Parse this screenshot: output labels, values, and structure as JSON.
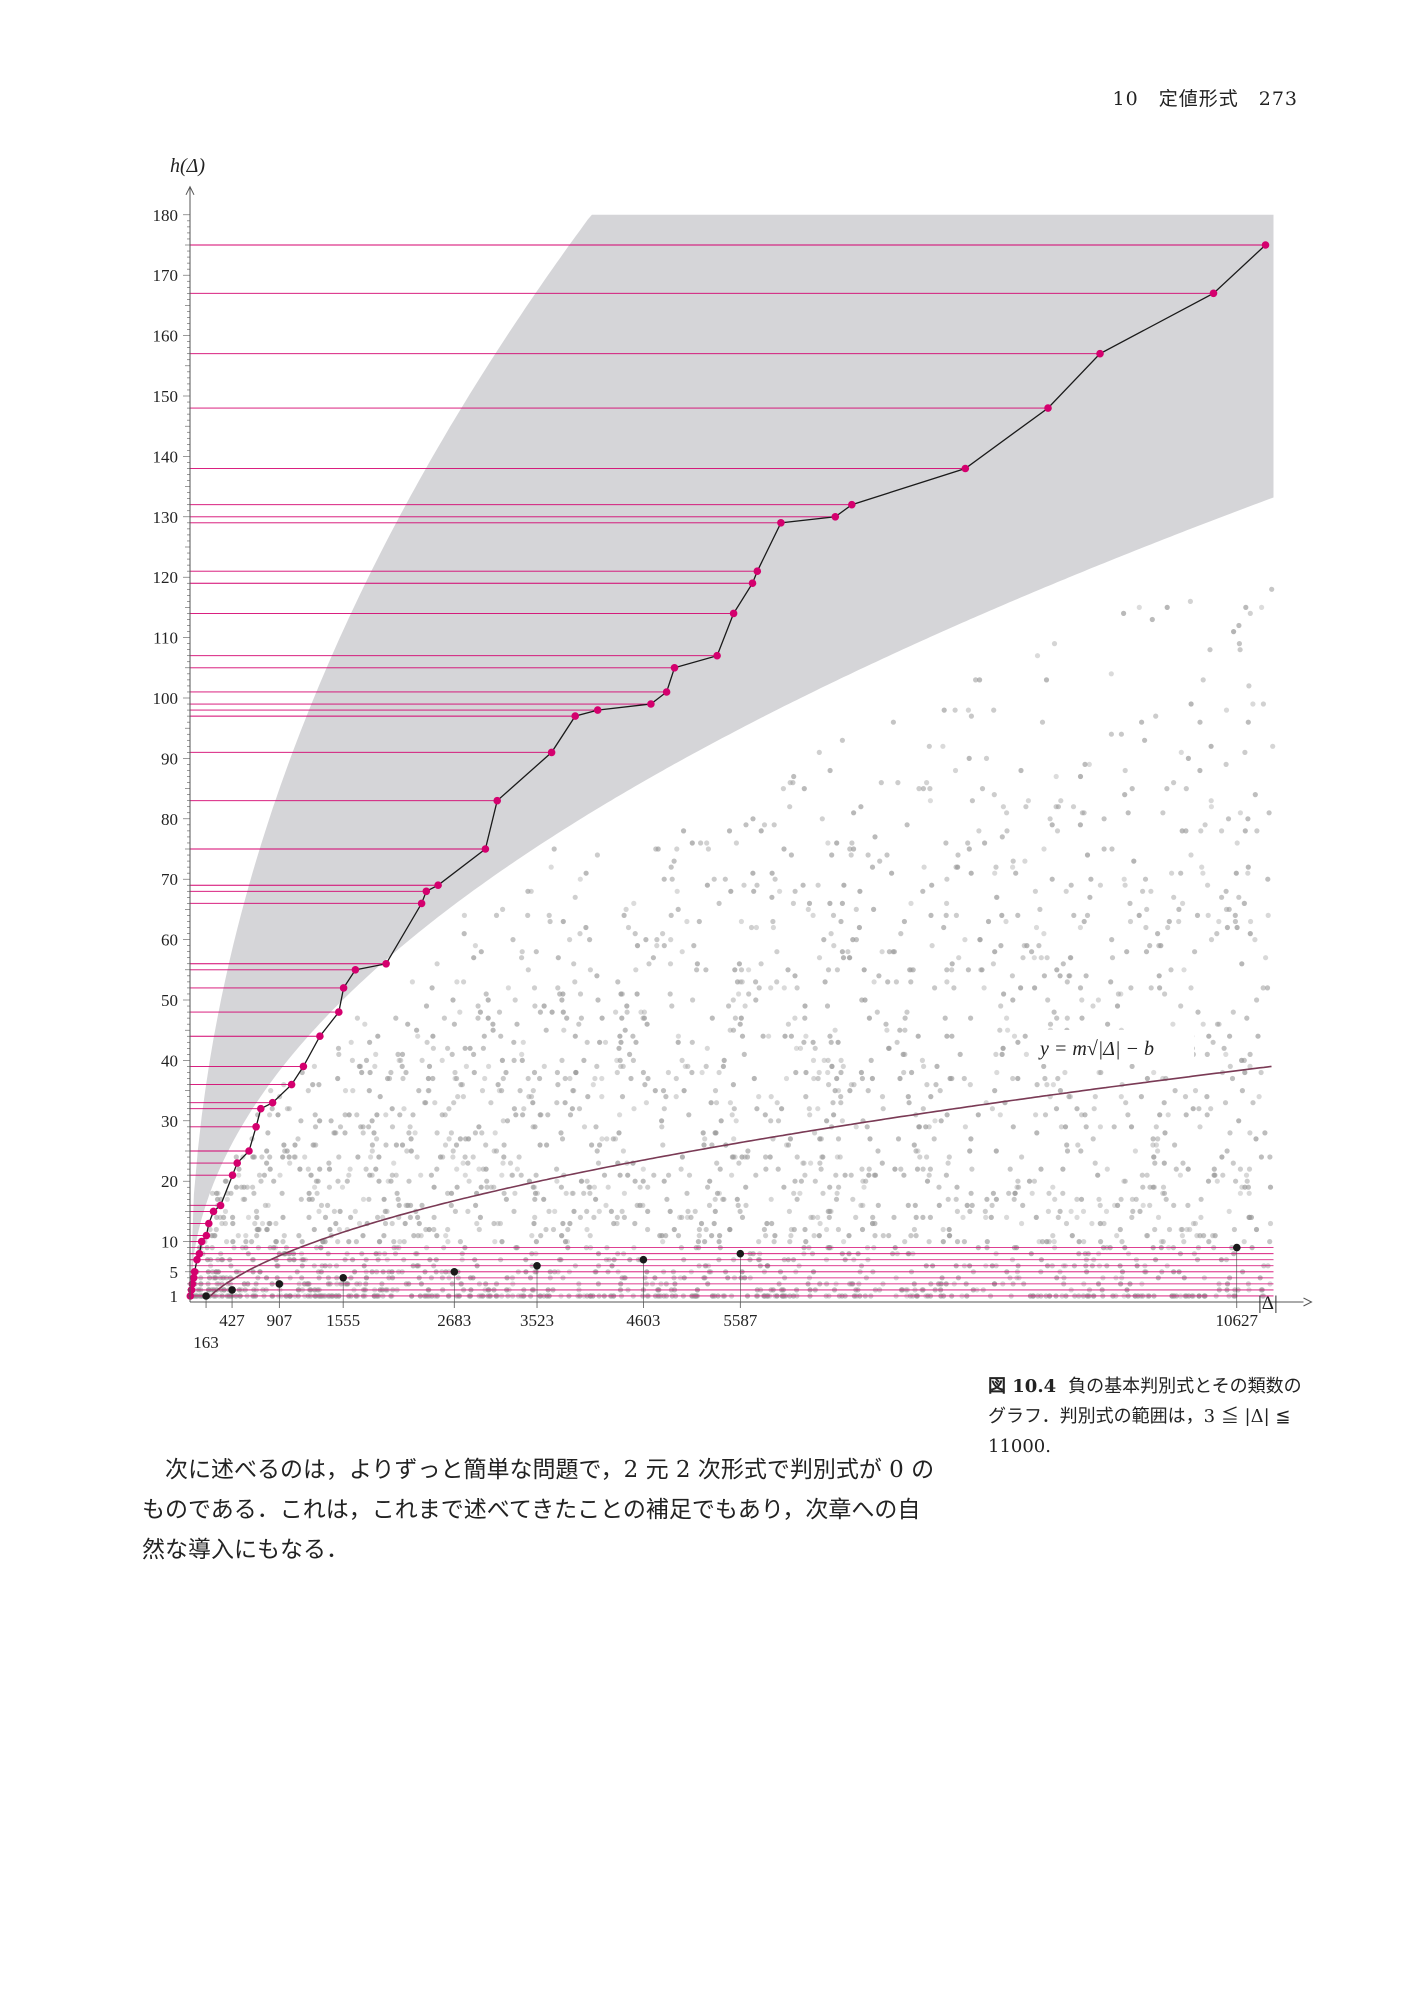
{
  "header": {
    "chapter_number": "10",
    "chapter_title": "定値形式",
    "page_number": "273"
  },
  "chart_data": {
    "type": "scatter",
    "ylabel": "h(Δ)",
    "xlabel": "|Δ|",
    "xlim": [
      0,
      11000
    ],
    "ylim": [
      0,
      180
    ],
    "y_ticks": [
      1,
      5,
      10,
      20,
      30,
      40,
      50,
      60,
      70,
      80,
      90,
      100,
      110,
      120,
      130,
      140,
      150,
      160,
      170,
      180
    ],
    "x_tick_labels": [
      "163",
      "427",
      "907",
      "1555",
      "2683",
      "3523",
      "4603",
      "5587",
      "10627"
    ],
    "curve_label": "y = m√|Δ| − b",
    "curve": {
      "m": 0.42,
      "b": 5
    },
    "shaded_band": {
      "lower_coeff": 1.27,
      "upper_coeff": 2.82
    },
    "record_series": {
      "name": "record",
      "x": [
        3,
        15,
        23,
        39,
        47,
        71,
        95,
        119,
        167,
        191,
        239,
        311,
        431,
        479,
        599,
        671,
        719,
        839,
        1031,
        1151,
        1319,
        1511,
        1559,
        1679,
        1991,
        2351,
        2399,
        2519,
        2999,
        3119,
        3671,
        3911,
        4139,
        4679,
        4839,
        4919,
        5351,
        5519,
        5711,
        5759,
        5999,
        6551,
        6719,
        7871,
        8711,
        9239,
        10391,
        10919
      ],
      "values": [
        1,
        2,
        3,
        4,
        5,
        7,
        8,
        10,
        11,
        13,
        15,
        16,
        21,
        23,
        25,
        29,
        32,
        33,
        36,
        39,
        44,
        48,
        52,
        55,
        56,
        66,
        68,
        69,
        75,
        83,
        91,
        97,
        98,
        99,
        101,
        105,
        107,
        114,
        119,
        121,
        129,
        130,
        132,
        138,
        148,
        157,
        167,
        175
      ]
    },
    "class_number_one": {
      "x": [
        163,
        427,
        907,
        1555,
        2683,
        3523,
        4603,
        5587,
        10627
      ],
      "values": [
        1,
        2,
        3,
        4,
        5,
        6,
        7,
        8,
        9
      ]
    },
    "scatter_range": "3 ≦ |Δ| ≦ 11000"
  },
  "caption": {
    "label": "図 10.4",
    "text": "負の基本判別式とその類数のグラフ．判別式の範囲は，3 ≦ |Δ| ≦ 11000."
  },
  "body": {
    "paragraph": "次に述べるのは，よりずっと簡単な問題で，2 元 2 次形式で判別式が 0 のものである．これは，これまで述べてきたことの補足でもあり，次章への自然な導入にもなる．"
  },
  "colors": {
    "magenta": "#d4006e",
    "band": "#d5d5d8",
    "dots": "#9a9a9a",
    "curve": "#7a3a55",
    "axis": "#555555"
  }
}
